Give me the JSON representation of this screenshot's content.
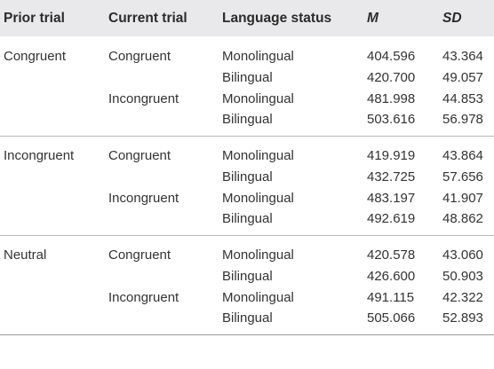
{
  "headers": {
    "prior_trial": "Prior trial",
    "current_trial": "Current trial",
    "language_status": "Language status",
    "m": "M",
    "sd": "SD"
  },
  "groups": [
    {
      "prior": "Congruent",
      "rows": [
        {
          "current": "Congruent",
          "language": "Monolingual",
          "m": "404.596",
          "sd": "43.364"
        },
        {
          "current": "",
          "language": "Bilingual",
          "m": "420.700",
          "sd": "49.057"
        },
        {
          "current": "Incongruent",
          "language": "Monolingual",
          "m": "481.998",
          "sd": "44.853"
        },
        {
          "current": "",
          "language": "Bilingual",
          "m": "503.616",
          "sd": "56.978"
        }
      ]
    },
    {
      "prior": "Incongruent",
      "rows": [
        {
          "current": "Congruent",
          "language": "Monolingual",
          "m": "419.919",
          "sd": "43.864"
        },
        {
          "current": "",
          "language": "Bilingual",
          "m": "432.725",
          "sd": "57.656"
        },
        {
          "current": "Incongruent",
          "language": "Monolingual",
          "m": "483.197",
          "sd": "41.907"
        },
        {
          "current": "",
          "language": "Bilingual",
          "m": "492.619",
          "sd": "48.862"
        }
      ]
    },
    {
      "prior": "Neutral",
      "rows": [
        {
          "current": "Congruent",
          "language": "Monolingual",
          "m": "420.578",
          "sd": "43.060"
        },
        {
          "current": "",
          "language": "Bilingual",
          "m": "426.600",
          "sd": "50.903"
        },
        {
          "current": "Incongruent",
          "language": "Monolingual",
          "m": "491.115",
          "sd": "42.322"
        },
        {
          "current": "",
          "language": "Bilingual",
          "m": "505.066",
          "sd": "52.893"
        }
      ]
    }
  ]
}
